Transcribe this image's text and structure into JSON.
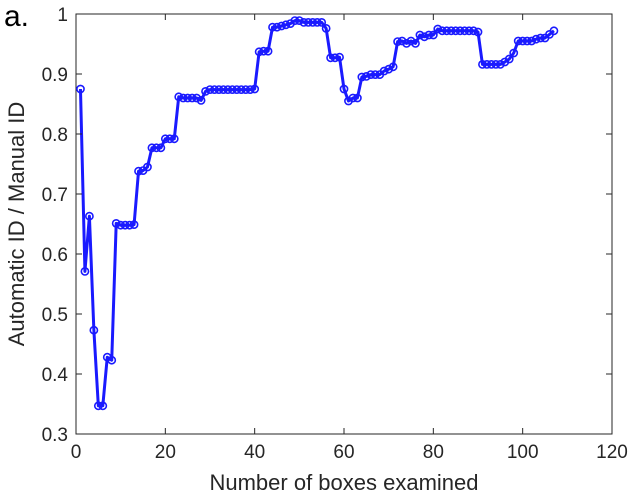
{
  "panel_label": "a.",
  "colors": {
    "series": "#1a1aff",
    "axis": "#262626",
    "background": "#ffffff"
  },
  "chart_data": {
    "type": "line",
    "title": "",
    "xlabel": "Number of boxes examined",
    "ylabel": "Automatic ID / Manual ID",
    "xlim": [
      0,
      120
    ],
    "ylim": [
      0.3,
      1
    ],
    "xticks": [
      "0",
      "20",
      "40",
      "60",
      "80",
      "100",
      "120"
    ],
    "yticks": [
      "0.3",
      "0.4",
      "0.5",
      "0.6",
      "0.7",
      "0.8",
      "0.9",
      "1"
    ],
    "grid": false,
    "legend": "none",
    "markers": "open-circle",
    "series": [
      {
        "x": [
          1,
          2,
          3,
          4,
          5,
          6,
          7,
          8,
          9,
          10,
          11,
          12,
          13,
          14,
          15,
          16,
          17,
          18,
          19,
          20,
          21,
          22,
          23,
          24,
          25,
          26,
          27,
          28,
          29,
          30,
          31,
          32,
          33,
          34,
          35,
          36,
          37,
          38,
          39,
          40,
          41,
          42,
          43,
          44,
          45,
          46,
          47,
          48,
          49,
          50,
          51,
          52,
          53,
          54,
          55,
          56,
          57,
          58,
          59,
          60,
          61,
          62,
          63,
          64,
          65,
          66,
          67,
          68,
          69,
          70,
          71,
          72,
          73,
          74,
          75,
          76,
          77,
          78,
          79,
          80,
          81,
          82,
          83,
          84,
          85,
          86,
          87,
          88,
          89,
          90,
          91,
          92,
          93,
          94,
          95,
          96,
          97,
          98,
          99,
          100,
          101,
          102,
          103,
          104,
          105,
          106,
          107
        ],
        "values": [
          0.875,
          0.571,
          0.663,
          0.473,
          0.347,
          0.347,
          0.428,
          0.423,
          0.651,
          0.648,
          0.648,
          0.648,
          0.649,
          0.738,
          0.739,
          0.745,
          0.777,
          0.777,
          0.777,
          0.792,
          0.792,
          0.792,
          0.862,
          0.86,
          0.86,
          0.86,
          0.86,
          0.856,
          0.871,
          0.874,
          0.874,
          0.874,
          0.874,
          0.874,
          0.874,
          0.874,
          0.874,
          0.874,
          0.874,
          0.875,
          0.937,
          0.938,
          0.938,
          0.978,
          0.978,
          0.98,
          0.982,
          0.984,
          0.989,
          0.989,
          0.986,
          0.986,
          0.986,
          0.986,
          0.986,
          0.976,
          0.927,
          0.927,
          0.928,
          0.875,
          0.855,
          0.86,
          0.86,
          0.895,
          0.896,
          0.899,
          0.899,
          0.899,
          0.905,
          0.908,
          0.912,
          0.954,
          0.955,
          0.951,
          0.955,
          0.951,
          0.965,
          0.962,
          0.965,
          0.965,
          0.975,
          0.972,
          0.972,
          0.972,
          0.972,
          0.972,
          0.972,
          0.972,
          0.972,
          0.97,
          0.916,
          0.916,
          0.916,
          0.916,
          0.916,
          0.92,
          0.925,
          0.935,
          0.955,
          0.955,
          0.955,
          0.955,
          0.958,
          0.96,
          0.96,
          0.966,
          0.972
        ]
      }
    ]
  }
}
